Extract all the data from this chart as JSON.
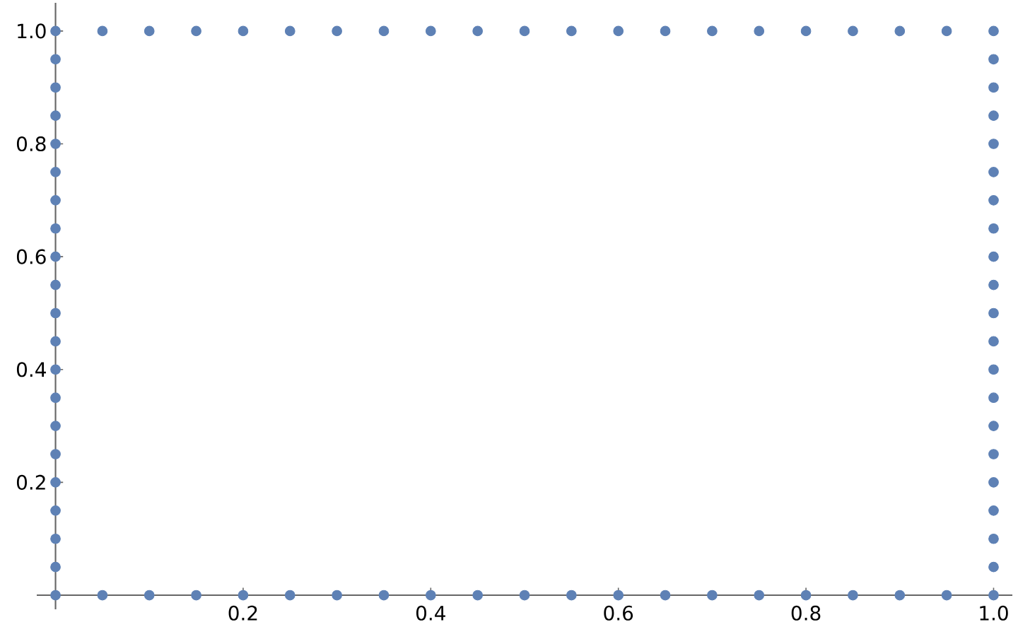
{
  "chart_data": {
    "type": "scatter",
    "x": [
      0,
      0.05,
      0.1,
      0.15,
      0.2,
      0.25,
      0.3,
      0.35,
      0.4,
      0.45,
      0.5,
      0.55,
      0.6,
      0.65,
      0.7,
      0.75,
      0.8,
      0.85,
      0.9,
      0.95,
      1,
      1,
      1,
      1,
      1,
      1,
      1,
      1,
      1,
      1,
      1,
      1,
      1,
      1,
      1,
      1,
      1,
      1,
      1,
      1,
      1,
      0.95,
      0.9,
      0.85,
      0.8,
      0.75,
      0.7,
      0.65,
      0.6,
      0.55,
      0.5,
      0.45,
      0.4,
      0.35,
      0.3,
      0.25,
      0.2,
      0.15,
      0.1,
      0.05,
      0,
      0,
      0,
      0,
      0,
      0,
      0,
      0,
      0,
      0,
      0,
      0,
      0,
      0,
      0,
      0,
      0,
      0,
      0,
      0
    ],
    "values": [
      0,
      0,
      0,
      0,
      0,
      0,
      0,
      0,
      0,
      0,
      0,
      0,
      0,
      0,
      0,
      0,
      0,
      0,
      0,
      0,
      0,
      0.05,
      0.1,
      0.15,
      0.2,
      0.25,
      0.3,
      0.35,
      0.4,
      0.45,
      0.5,
      0.55,
      0.6,
      0.65,
      0.7,
      0.75,
      0.8,
      0.85,
      0.9,
      0.95,
      1,
      1,
      1,
      1,
      1,
      1,
      1,
      1,
      1,
      1,
      1,
      1,
      1,
      1,
      1,
      1,
      1,
      1,
      1,
      1,
      1,
      0.95,
      0.9,
      0.85,
      0.8,
      0.75,
      0.7,
      0.65,
      0.6,
      0.55,
      0.5,
      0.45,
      0.4,
      0.35,
      0.3,
      0.25,
      0.2,
      0.15,
      0.1,
      0.05
    ],
    "color": "#5e81b5",
    "marker": "circle",
    "xlim": [
      -0.02,
      1.02
    ],
    "ylim": [
      -0.025,
      1.05
    ],
    "xticks": [
      0.2,
      0.4,
      0.6,
      0.8,
      {
        "value": 1,
        "label": "1.0"
      }
    ],
    "yticks": [
      0.2,
      0.4,
      0.6,
      0.8,
      {
        "value": 1,
        "label": "1.0"
      }
    ]
  }
}
